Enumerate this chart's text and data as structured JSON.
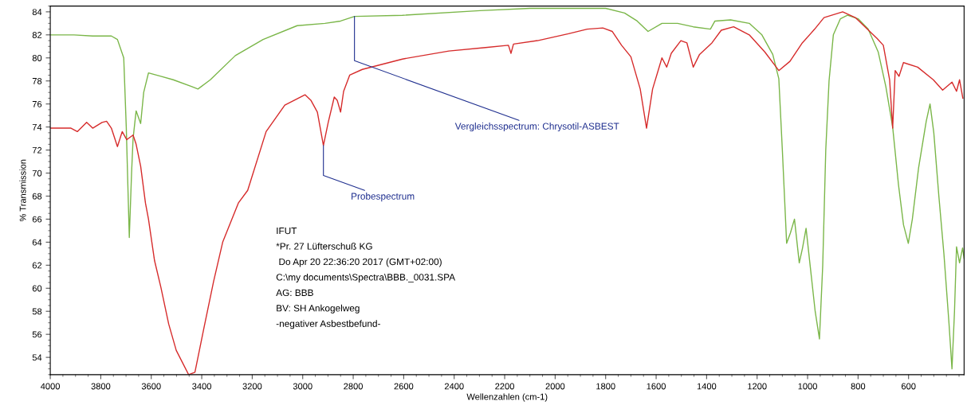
{
  "chart_data": {
    "type": "line",
    "xlabel": "Wellenzahlen (cm-1)",
    "ylabel": "% Transmission",
    "xlim": [
      4000,
      380
    ],
    "xticks": [
      4000,
      3800,
      3600,
      3400,
      3200,
      3000,
      2800,
      2600,
      2400,
      2200,
      2000,
      1800,
      1600,
      1400,
      1200,
      1000,
      800,
      600
    ],
    "ylim": [
      52.5,
      84.5
    ],
    "yticks": [
      54,
      56,
      58,
      60,
      62,
      64,
      66,
      68,
      70,
      72,
      74,
      76,
      78,
      80,
      82,
      84
    ],
    "grid": false,
    "legend": false,
    "marker": "none",
    "line_style": "solid",
    "series": [
      {
        "color": "#7ab648",
        "x": [
          4000,
          3906,
          3832,
          3758,
          3734,
          3709,
          3699,
          3687,
          3678,
          3672,
          3660,
          3642,
          3630,
          3611,
          3562,
          3513,
          3439,
          3415,
          3366,
          3267,
          3157,
          3022,
          2912,
          2850,
          2795,
          2605,
          2298,
          2100,
          1900,
          1800,
          1725,
          1675,
          1632,
          1577,
          1515,
          1453,
          1385,
          1367,
          1305,
          1231,
          1181,
          1138,
          1114,
          1100,
          1083,
          1068,
          1052,
          1033,
          1020,
          1006,
          990,
          970,
          953,
          940,
          928,
          915,
          898,
          870,
          842,
          800,
          760,
          720,
          690,
          663,
          640,
          620,
          601,
          585,
          560,
          530,
          515,
          500,
          480,
          460,
          440,
          428,
          418,
          410,
          398,
          386,
          380
        ],
        "values": [
          82.0,
          82.0,
          81.9,
          81.9,
          81.6,
          80.0,
          74.0,
          64.4,
          70.0,
          73.0,
          75.4,
          74.3,
          77.0,
          78.7,
          78.4,
          78.1,
          77.5,
          77.3,
          78.1,
          80.2,
          81.6,
          82.8,
          83.0,
          83.2,
          83.6,
          83.7,
          84.1,
          84.3,
          84.3,
          84.3,
          83.9,
          83.2,
          82.3,
          83.0,
          83.0,
          82.7,
          82.5,
          83.2,
          83.3,
          83.0,
          82.0,
          80.3,
          78.2,
          72.0,
          63.9,
          64.8,
          66.0,
          62.2,
          63.5,
          65.2,
          62.0,
          58.0,
          55.6,
          62.0,
          72.0,
          78.0,
          82.0,
          83.4,
          83.7,
          83.4,
          82.5,
          80.5,
          77.5,
          74.0,
          69.0,
          65.5,
          63.9,
          66.0,
          70.5,
          74.5,
          76.0,
          73.5,
          68.0,
          63.0,
          57.0,
          53.0,
          58.0,
          63.6,
          62.2,
          63.5,
          62.6
        ]
      },
      {
        "color": "#d62b2b",
        "x": [
          4000,
          3918,
          3893,
          3856,
          3832,
          3795,
          3777,
          3758,
          3734,
          3715,
          3697,
          3672,
          3660,
          3642,
          3623,
          3611,
          3587,
          3562,
          3531,
          3501,
          3452,
          3427,
          3390,
          3353,
          3317,
          3255,
          3218,
          3145,
          3071,
          2991,
          2967,
          2942,
          2918,
          2899,
          2875,
          2863,
          2850,
          2838,
          2814,
          2764,
          2605,
          2421,
          2276,
          2185,
          2175,
          2165,
          2070,
          1947,
          1873,
          1811,
          1774,
          1737,
          1700,
          1663,
          1638,
          1614,
          1577,
          1558,
          1540,
          1502,
          1478,
          1453,
          1428,
          1379,
          1342,
          1293,
          1231,
          1169,
          1114,
          1070,
          1021,
          972,
          935,
          861,
          811,
          725,
          700,
          675,
          663,
          653,
          638,
          620,
          607,
          564,
          502,
          465,
          428,
          410,
          398,
          385
        ],
        "values": [
          73.9,
          73.9,
          73.6,
          74.4,
          73.9,
          74.4,
          74.5,
          73.9,
          72.3,
          73.6,
          72.9,
          73.3,
          72.5,
          70.6,
          67.4,
          66.0,
          62.4,
          60.1,
          56.9,
          54.6,
          52.5,
          52.7,
          56.7,
          60.6,
          64.0,
          67.4,
          68.5,
          73.6,
          75.9,
          76.8,
          76.3,
          75.3,
          72.4,
          74.4,
          76.6,
          76.3,
          75.3,
          77.1,
          78.5,
          79.0,
          79.9,
          80.6,
          80.9,
          81.1,
          80.4,
          81.2,
          81.5,
          82.1,
          82.5,
          82.6,
          82.3,
          81.1,
          80.1,
          77.3,
          73.9,
          77.3,
          80.0,
          79.2,
          80.4,
          81.5,
          81.3,
          79.2,
          80.3,
          81.3,
          82.4,
          82.7,
          82.0,
          80.5,
          78.9,
          79.7,
          81.3,
          82.5,
          83.5,
          84.0,
          83.5,
          81.7,
          81.1,
          78.1,
          73.9,
          78.9,
          78.4,
          79.6,
          79.5,
          79.2,
          78.1,
          77.2,
          77.9,
          77.1,
          78.1,
          76.5
        ]
      }
    ],
    "annotations": [
      {
        "text": "Vergleichsspectrum: Chrysotil-ASBEST",
        "x": 2795,
        "y": 83.6
      },
      {
        "text": "Probespectrum",
        "x": 2918,
        "y": 72.4
      },
      "IFUT",
      "*Pr. 27 Lüfterschuß KG",
      " Do Apr 20 22:36:20 2017 (GMT+02:00)",
      "C:\\my documents\\Spectra\\BBB._0031.SPA",
      "AG: BBB",
      "BV: SH Ankogelweg",
      "-negativer Asbestbefund-"
    ]
  }
}
